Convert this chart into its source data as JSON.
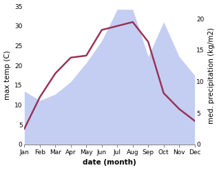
{
  "months": [
    "Jan",
    "Feb",
    "Mar",
    "Apr",
    "May",
    "Jun",
    "Jul",
    "Aug",
    "Sep",
    "Oct",
    "Nov",
    "Dec"
  ],
  "temp_max": [
    4,
    12,
    18,
    22,
    22.5,
    29,
    30,
    31,
    26,
    13,
    9,
    6
  ],
  "precipitation": [
    8.5,
    7,
    8,
    10,
    13,
    16.5,
    21.5,
    21.5,
    14,
    19.5,
    14,
    11
  ],
  "temp_ylim": [
    0,
    35
  ],
  "precip_ylim": [
    0,
    22
  ],
  "temp_yticks": [
    0,
    5,
    10,
    15,
    20,
    25,
    30,
    35
  ],
  "precip_yticks": [
    0,
    5,
    10,
    15,
    20
  ],
  "temp_color": "#993355",
  "fill_color": "#b0bef0",
  "fill_alpha": 0.75,
  "xlabel": "date (month)",
  "ylabel_left": "max temp (C)",
  "ylabel_right": "med. precipitation (kg/m2)",
  "label_fontsize": 7.5,
  "tick_fontsize": 6.5,
  "linewidth": 1.8,
  "bg_color": "#ffffff"
}
